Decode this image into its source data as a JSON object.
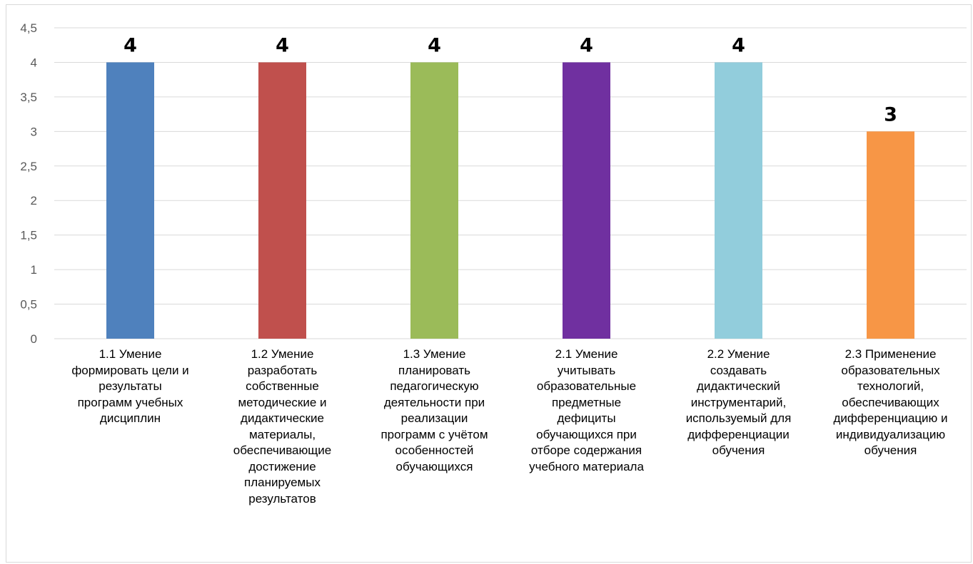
{
  "chart_data": {
    "type": "bar",
    "title": "",
    "xlabel": "",
    "ylabel": "",
    "ylim": [
      0,
      4.5
    ],
    "ytick_step": 0.5,
    "ytick_labels": [
      "0",
      "0,5",
      "1",
      "1,5",
      "2",
      "2,5",
      "3",
      "3,5",
      "4",
      "4,5"
    ],
    "grid": true,
    "legend": "none",
    "categories": [
      "1.1 Умение формировать цели и результаты программ учебных дисциплин",
      "1.2 Умение разработать собственные методические и дидактические материалы, обеспечивающие достижение планируемых результатов",
      "1.3 Умение планировать педагогическую деятельности при реализации программ с учётом особенностей обучающихся",
      "2.1 Умение учитывать образовательные предметные дефициты обучающихся при отборе содержания учебного материала",
      "2.2 Умение создавать дидактический инструментарий, используемый для дифференциации обучения",
      "2.3 Применение образовательных технологий, обеспечивающих дифференциацию и индивидуализацию обучения"
    ],
    "category_lines": [
      [
        "1.1 Умение",
        "формировать цели и",
        "результаты",
        "программ учебных",
        "дисциплин"
      ],
      [
        "1.2 Умение",
        "разработать",
        "собственные",
        "методические и",
        "дидактические",
        "материалы,",
        "обеспечивающие",
        "достижение",
        "планируемых",
        "результатов"
      ],
      [
        "1.3 Умение",
        "планировать",
        "педагогическую",
        "деятельности при",
        "реализации",
        "программ с учётом",
        "особенностей",
        "обучающихся"
      ],
      [
        "2.1 Умение",
        "учитывать",
        "образовательные",
        "предметные",
        "дефициты",
        "обучающихся при",
        "отборе содержания",
        "учебного материала"
      ],
      [
        "2.2 Умение",
        "создавать",
        "дидактический",
        "инструментарий,",
        "используемый для",
        "дифференциации",
        "обучения"
      ],
      [
        "2.3 Применение",
        "образовательных",
        "технологий,",
        "обеспечивающих",
        "дифференциацию и",
        "индивидуализацию",
        "обучения"
      ]
    ],
    "values": [
      4,
      4,
      4,
      4,
      4,
      3
    ],
    "data_labels": [
      "4",
      "4",
      "4",
      "4",
      "4",
      "3"
    ],
    "colors": [
      "#4f81bd",
      "#c0504d",
      "#9bbb59",
      "#7030a0",
      "#92cddc",
      "#f79646"
    ],
    "grid_color": "#d9d9d9",
    "tick_color": "#595959"
  }
}
